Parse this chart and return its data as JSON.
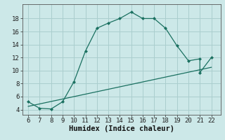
{
  "xlabel": "Humidex (Indice chaleur)",
  "curve_x": [
    6,
    7,
    8,
    9,
    10,
    11,
    12,
    13,
    14,
    15,
    16,
    17,
    18,
    19,
    20,
    21,
    21,
    22
  ],
  "curve_y": [
    5.2,
    4.2,
    4.1,
    5.2,
    8.3,
    13.0,
    16.5,
    17.3,
    18.0,
    19.0,
    18.0,
    18.0,
    16.5,
    13.8,
    11.5,
    11.8,
    9.7,
    12.0
  ],
  "line_x": [
    6,
    22
  ],
  "line_y": [
    4.5,
    10.5
  ],
  "xlim": [
    5.5,
    22.8
  ],
  "ylim": [
    3.2,
    20.2
  ],
  "yticks": [
    4,
    6,
    8,
    10,
    12,
    14,
    16,
    18
  ],
  "xticks": [
    6,
    7,
    8,
    9,
    10,
    11,
    12,
    13,
    14,
    15,
    16,
    17,
    18,
    19,
    20,
    21,
    22
  ],
  "curve_color": "#1a7060",
  "bg_color": "#cce8e8",
  "grid_color": "#aacece",
  "tick_fontsize": 6.5,
  "label_fontsize": 7.5
}
